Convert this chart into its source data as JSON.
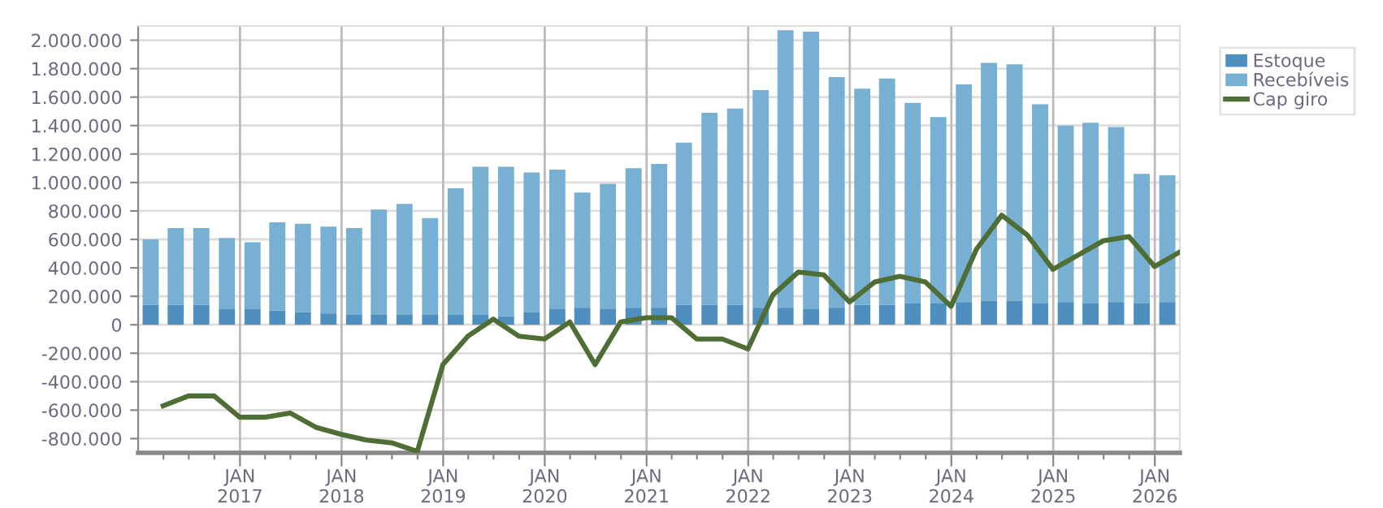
{
  "chart_data": {
    "type": "bar",
    "stacked": true,
    "grid": true,
    "legend": "right",
    "x": [
      "2016-02-15",
      "2016-05-15",
      "2016-08-15",
      "2016-11-15",
      "2017-02-15",
      "2017-05-15",
      "2017-08-15",
      "2017-11-15",
      "2018-02-15",
      "2018-05-15",
      "2018-08-15",
      "2018-11-15",
      "2019-02-15",
      "2019-05-15",
      "2019-08-15",
      "2019-11-15",
      "2020-02-15",
      "2020-05-15",
      "2020-08-15",
      "2020-11-15",
      "2021-02-15",
      "2021-05-15",
      "2021-08-15",
      "2021-11-15",
      "2022-02-15",
      "2022-05-15",
      "2022-08-15",
      "2022-11-15",
      "2023-02-15",
      "2023-05-15",
      "2023-08-15",
      "2023-11-15",
      "2024-02-15",
      "2024-05-15",
      "2024-08-15",
      "2024-11-15",
      "2025-02-15",
      "2025-05-15",
      "2025-08-15",
      "2025-11-15",
      "2026-02-15"
    ],
    "series": [
      {
        "name": "Estoque",
        "color": "#4f8fbf",
        "values": [
          140000,
          140000,
          140000,
          110000,
          110000,
          100000,
          90000,
          80000,
          70000,
          70000,
          70000,
          70000,
          70000,
          70000,
          60000,
          90000,
          110000,
          120000,
          110000,
          120000,
          120000,
          140000,
          140000,
          140000,
          120000,
          120000,
          110000,
          120000,
          140000,
          140000,
          150000,
          150000,
          160000,
          170000,
          170000,
          150000,
          160000,
          150000,
          160000,
          150000,
          160000
        ]
      },
      {
        "name": "Recebíveis",
        "color": "#77b0d3",
        "values": [
          460000,
          540000,
          540000,
          500000,
          470000,
          620000,
          620000,
          610000,
          610000,
          740000,
          780000,
          680000,
          890000,
          1040000,
          1050000,
          980000,
          980000,
          810000,
          880000,
          980000,
          1010000,
          1140000,
          1350000,
          1380000,
          1530000,
          1950000,
          1950000,
          1620000,
          1520000,
          1590000,
          1410000,
          1310000,
          1530000,
          1670000,
          1660000,
          1400000,
          1240000,
          1270000,
          1230000,
          910000,
          890000
        ]
      },
      {
        "name": "Cap giro",
        "type": "line",
        "color": "#4e6e35",
        "x": [
          "2016-03-31",
          "2016-06-30",
          "2016-09-30",
          "2016-12-31",
          "2017-03-31",
          "2017-06-30",
          "2017-09-30",
          "2017-12-31",
          "2018-03-31",
          "2018-06-30",
          "2018-09-30",
          "2018-12-31",
          "2019-03-31",
          "2019-06-30",
          "2019-09-30",
          "2019-12-31",
          "2020-03-31",
          "2020-06-30",
          "2020-09-30",
          "2020-12-31",
          "2021-03-31",
          "2021-06-30",
          "2021-09-30",
          "2021-12-31",
          "2022-03-31",
          "2022-06-30",
          "2022-09-30",
          "2022-12-31",
          "2023-03-31",
          "2023-06-30",
          "2023-09-30",
          "2023-12-31",
          "2024-03-31",
          "2024-06-30",
          "2024-09-30",
          "2024-12-31",
          "2025-03-31",
          "2025-06-30",
          "2025-09-30",
          "2025-12-31",
          "2026-03-31"
        ],
        "values": [
          -570000,
          -500000,
          -500000,
          -650000,
          -650000,
          -620000,
          -720000,
          -770000,
          -810000,
          -830000,
          -890000,
          -280000,
          -80000,
          40000,
          -80000,
          -100000,
          20000,
          -280000,
          20000,
          50000,
          50000,
          -100000,
          -100000,
          -170000,
          210000,
          370000,
          350000,
          160000,
          300000,
          340000,
          300000,
          130000,
          530000,
          770000,
          630000,
          390000,
          490000,
          590000,
          620000,
          410000,
          510000
        ]
      }
    ],
    "xlim": [
      "2016-01-01",
      "2026-04-01"
    ],
    "xticks": [
      {
        "value": "2016-04-01",
        "label": null
      },
      {
        "value": "2016-07-01",
        "label": null
      },
      {
        "value": "2016-10-01",
        "label": null
      },
      {
        "value": "2017-01-01",
        "label": "JAN\n2017"
      },
      {
        "value": "2017-04-01",
        "label": null
      },
      {
        "value": "2017-07-01",
        "label": null
      },
      {
        "value": "2017-10-01",
        "label": null
      },
      {
        "value": "2018-01-01",
        "label": "JAN\n2018"
      },
      {
        "value": "2018-04-01",
        "label": null
      },
      {
        "value": "2018-07-01",
        "label": null
      },
      {
        "value": "2018-10-01",
        "label": null
      },
      {
        "value": "2019-01-01",
        "label": "JAN\n2019"
      },
      {
        "value": "2019-04-01",
        "label": null
      },
      {
        "value": "2019-07-01",
        "label": null
      },
      {
        "value": "2019-10-01",
        "label": null
      },
      {
        "value": "2020-01-01",
        "label": "JAN\n2020"
      },
      {
        "value": "2020-04-01",
        "label": null
      },
      {
        "value": "2020-07-01",
        "label": null
      },
      {
        "value": "2020-10-01",
        "label": null
      },
      {
        "value": "2021-01-01",
        "label": "JAN\n2021"
      },
      {
        "value": "2021-04-01",
        "label": null
      },
      {
        "value": "2021-07-01",
        "label": null
      },
      {
        "value": "2021-10-01",
        "label": null
      },
      {
        "value": "2022-01-01",
        "label": "JAN\n2022"
      },
      {
        "value": "2022-04-01",
        "label": null
      },
      {
        "value": "2022-07-01",
        "label": null
      },
      {
        "value": "2022-10-01",
        "label": null
      },
      {
        "value": "2023-01-01",
        "label": "JAN\n2023"
      },
      {
        "value": "2023-04-01",
        "label": null
      },
      {
        "value": "2023-07-01",
        "label": null
      },
      {
        "value": "2023-10-01",
        "label": null
      },
      {
        "value": "2024-01-01",
        "label": "JAN\n2024"
      },
      {
        "value": "2024-04-01",
        "label": null
      },
      {
        "value": "2024-07-01",
        "label": null
      },
      {
        "value": "2024-10-01",
        "label": null
      },
      {
        "value": "2025-01-01",
        "label": "JAN\n2025"
      },
      {
        "value": "2025-04-01",
        "label": null
      },
      {
        "value": "2025-07-01",
        "label": null
      },
      {
        "value": "2025-10-01",
        "label": null
      },
      {
        "value": "2026-01-01",
        "label": "JAN\n2026"
      }
    ],
    "ylim": [
      -900000,
      2100000
    ],
    "yticks": [
      {
        "value": -800000,
        "label": "-800.000"
      },
      {
        "value": -600000,
        "label": "-600.000"
      },
      {
        "value": -400000,
        "label": "-400.000"
      },
      {
        "value": -200000,
        "label": "-200.000"
      },
      0,
      {
        "value": 200000,
        "label": "200.000"
      },
      {
        "value": 400000,
        "label": "400.000"
      },
      {
        "value": 600000,
        "label": "600.000"
      },
      {
        "value": 800000,
        "label": "800.000"
      },
      {
        "value": 1000000,
        "label": "1.000.000"
      },
      {
        "value": 1200000,
        "label": "1.200.000"
      },
      {
        "value": 1400000,
        "label": "1.400.000"
      },
      {
        "value": 1600000,
        "label": "1.600.000"
      },
      {
        "value": 1800000,
        "label": "1.800.000"
      },
      {
        "value": 2000000,
        "label": "2.000.000"
      }
    ]
  }
}
